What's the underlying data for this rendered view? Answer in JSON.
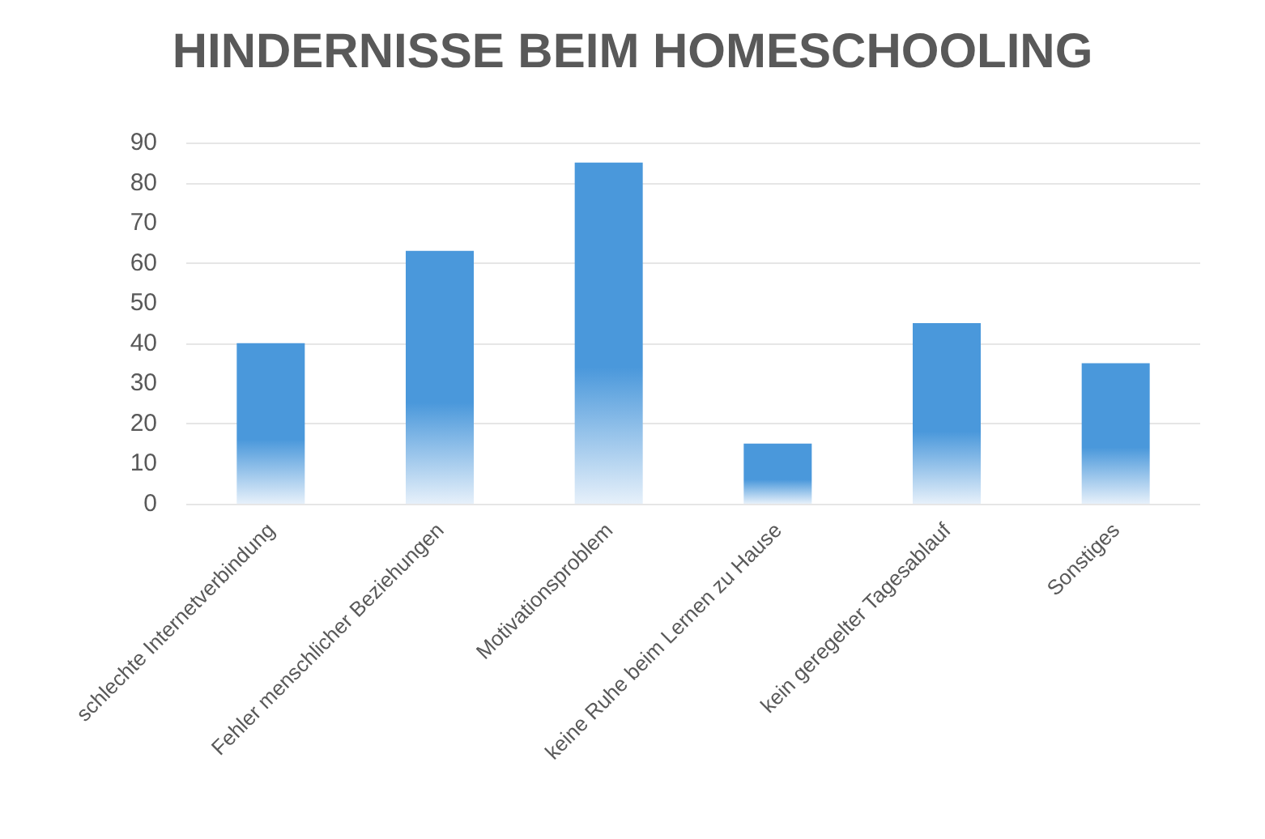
{
  "chart_data": {
    "type": "bar",
    "title": "HINDERNISSE BEIM HOMESCHOOLING",
    "categories": [
      "schlechte Internetverbindung",
      "Fehler menschlicher Beziehungen",
      "Motivationsproblem",
      "keine Ruhe beim Lernen zu Hause",
      "kein geregelter Tagesablauf",
      "Sonstiges"
    ],
    "values": [
      40,
      63,
      85,
      15,
      45,
      35
    ],
    "color": "#4a98db",
    "ylim": [
      0,
      90
    ],
    "yticks": [
      0,
      10,
      20,
      30,
      40,
      50,
      60,
      70,
      80,
      90
    ],
    "grid": "y"
  }
}
